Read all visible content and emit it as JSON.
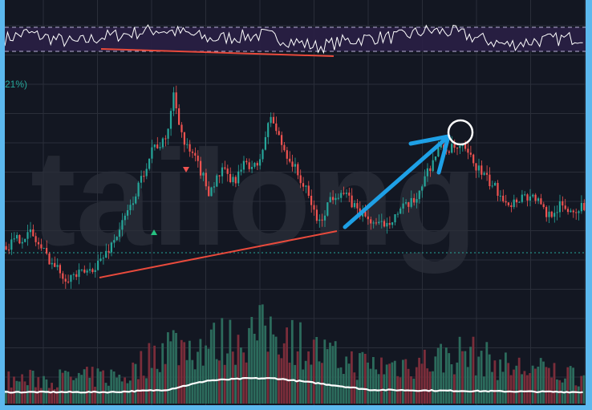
{
  "watermark": "tailong",
  "percent_label": "21%)",
  "colors": {
    "background": "#131722",
    "frame": "#5cb8ee",
    "grid": "#2a2e39",
    "candle_up": "#26a69a",
    "candle_down": "#ef5350",
    "volume_up": "#2c6b5c",
    "volume_down": "#7a2d3a",
    "rsi_band": "#2a1f45",
    "rsi_line": "#ffffff",
    "trendline": "#e84a3c",
    "arrow": "#1ea0e6",
    "ma_line": "#ffffff",
    "dotted_level": "#26a69a"
  },
  "chart_data": {
    "type": "candlestick",
    "title": "",
    "xlabel": "",
    "ylabel": "",
    "grid": true,
    "price_profile": [
      [
        0,
        0.23
      ],
      [
        4,
        0.26
      ],
      [
        9,
        0.29
      ],
      [
        13,
        0.22
      ],
      [
        18,
        0.14
      ],
      [
        22,
        0.09
      ],
      [
        27,
        0.1
      ],
      [
        31,
        0.12
      ],
      [
        36,
        0.18
      ],
      [
        40,
        0.26
      ],
      [
        45,
        0.38
      ],
      [
        50,
        0.53
      ],
      [
        54,
        0.68
      ],
      [
        59,
        0.7
      ],
      [
        62,
        0.92
      ],
      [
        66,
        0.69
      ],
      [
        71,
        0.6
      ],
      [
        75,
        0.48
      ],
      [
        80,
        0.57
      ],
      [
        84,
        0.52
      ],
      [
        89,
        0.61
      ],
      [
        93,
        0.58
      ],
      [
        98,
        0.82
      ],
      [
        102,
        0.69
      ],
      [
        107,
        0.58
      ],
      [
        111,
        0.48
      ],
      [
        116,
        0.33
      ],
      [
        120,
        0.45
      ],
      [
        124,
        0.48
      ],
      [
        129,
        0.41
      ],
      [
        133,
        0.36
      ],
      [
        138,
        0.32
      ],
      [
        142,
        0.35
      ],
      [
        147,
        0.4
      ],
      [
        151,
        0.43
      ],
      [
        156,
        0.57
      ],
      [
        160,
        0.67
      ],
      [
        164,
        0.67
      ],
      [
        169,
        0.67
      ],
      [
        173,
        0.61
      ],
      [
        178,
        0.53
      ],
      [
        182,
        0.48
      ],
      [
        187,
        0.42
      ],
      [
        191,
        0.46
      ],
      [
        196,
        0.45
      ],
      [
        200,
        0.37
      ],
      [
        205,
        0.41
      ],
      [
        209,
        0.39
      ],
      [
        214,
        0.41
      ]
    ],
    "rsi_profile": [
      [
        0,
        0.55
      ],
      [
        8,
        0.7
      ],
      [
        16,
        0.58
      ],
      [
        26,
        0.45
      ],
      [
        36,
        0.6
      ],
      [
        46,
        0.68
      ],
      [
        56,
        0.78
      ],
      [
        66,
        0.7
      ],
      [
        76,
        0.55
      ],
      [
        86,
        0.6
      ],
      [
        96,
        0.65
      ],
      [
        106,
        0.5
      ],
      [
        116,
        0.35
      ],
      [
        126,
        0.5
      ],
      [
        136,
        0.58
      ],
      [
        146,
        0.6
      ],
      [
        156,
        0.75
      ],
      [
        166,
        0.72
      ],
      [
        176,
        0.55
      ],
      [
        186,
        0.4
      ],
      [
        196,
        0.5
      ],
      [
        206,
        0.55
      ],
      [
        214,
        0.6
      ]
    ],
    "volume_profile": [
      [
        0,
        0.25
      ],
      [
        30,
        0.28
      ],
      [
        45,
        0.3
      ],
      [
        60,
        0.65
      ],
      [
        70,
        0.6
      ],
      [
        85,
        0.7
      ],
      [
        100,
        0.8
      ],
      [
        115,
        0.55
      ],
      [
        125,
        0.45
      ],
      [
        140,
        0.4
      ],
      [
        155,
        0.45
      ],
      [
        170,
        0.55
      ],
      [
        185,
        0.4
      ],
      [
        200,
        0.35
      ],
      [
        214,
        0.3
      ]
    ],
    "ma_profile": [
      [
        0,
        0.1
      ],
      [
        40,
        0.1
      ],
      [
        60,
        0.12
      ],
      [
        75,
        0.2
      ],
      [
        90,
        0.22
      ],
      [
        100,
        0.22
      ],
      [
        115,
        0.18
      ],
      [
        135,
        0.12
      ],
      [
        170,
        0.11
      ],
      [
        214,
        0.1
      ]
    ],
    "candle_count": 215
  }
}
